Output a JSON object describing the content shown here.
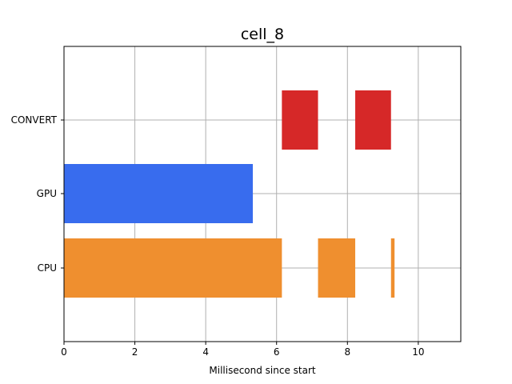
{
  "chart_data": {
    "type": "bar",
    "orientation": "horizontal-timeline",
    "title": "cell_8",
    "xlabel": "Millisecond since start",
    "ylabel": "",
    "xlim": [
      0,
      11.2
    ],
    "x_ticks": [
      0,
      2,
      4,
      6,
      8,
      10
    ],
    "categories": [
      "CPU",
      "GPU",
      "CONVERT"
    ],
    "grid": true,
    "series": [
      {
        "category": "CPU",
        "color": "#ef8f2f",
        "segments": [
          {
            "start": 0,
            "end": 6.15
          },
          {
            "start": 7.17,
            "end": 8.22
          },
          {
            "start": 9.23,
            "end": 9.33
          }
        ]
      },
      {
        "category": "GPU",
        "color": "#386cee",
        "segments": [
          {
            "start": 0,
            "end": 5.33
          }
        ]
      },
      {
        "category": "CONVERT",
        "color": "#d62828",
        "segments": [
          {
            "start": 6.15,
            "end": 7.17
          },
          {
            "start": 8.22,
            "end": 9.23
          }
        ]
      }
    ]
  }
}
